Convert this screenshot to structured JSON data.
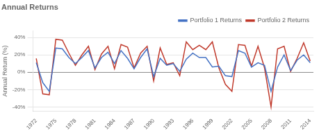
{
  "chart_data": {
    "type": "line",
    "title": "Annual Returns",
    "y_label": "Annual Return (%)",
    "x": [
      1972,
      1973,
      1974,
      1975,
      1976,
      1977,
      1978,
      1979,
      1980,
      1981,
      1982,
      1983,
      1984,
      1985,
      1986,
      1987,
      1988,
      1989,
      1990,
      1991,
      1992,
      1993,
      1994,
      1995,
      1996,
      1997,
      1998,
      1999,
      2000,
      2001,
      2002,
      2003,
      2004,
      2005,
      2006,
      2007,
      2008,
      2009,
      2010,
      2011,
      2012,
      2013,
      2014
    ],
    "series": [
      {
        "name": "Portfolio 1 Returns",
        "color": "#4472c4",
        "values": [
          11,
          -12,
          -22,
          28,
          27,
          17,
          10,
          17,
          25,
          5,
          17,
          23,
          10,
          25,
          16,
          4,
          17,
          27,
          -5,
          16,
          8,
          10,
          1,
          15,
          22,
          17,
          17,
          6,
          7,
          -4,
          -5,
          25,
          22,
          6,
          11,
          8,
          -22,
          6,
          20,
          2,
          14,
          20,
          11
        ]
      },
      {
        "name": "Portfolio 2 Returns",
        "color": "#c0392b",
        "values": [
          16,
          -25,
          -26,
          38,
          37,
          22,
          8,
          20,
          30,
          3,
          21,
          30,
          4,
          32,
          29,
          5,
          22,
          30,
          -10,
          28,
          9,
          11,
          -4,
          35,
          26,
          31,
          26,
          35,
          5,
          -14,
          -22,
          32,
          31,
          7,
          30,
          5,
          -40,
          27,
          30,
          1,
          16,
          34,
          13
        ]
      }
    ],
    "xlim": [
      1971.5,
      2014.5
    ],
    "xticks": [
      1972,
      1975,
      1978,
      1981,
      1984,
      1987,
      1990,
      1993,
      1996,
      1999,
      2002,
      2005,
      2008,
      2011,
      2014
    ],
    "ylim": [
      -45,
      48
    ],
    "yticks": [
      {
        "value": -40,
        "label": "-40%"
      },
      {
        "value": -20,
        "label": "-20%"
      },
      {
        "value": 0,
        "label": "0%"
      },
      {
        "value": 20,
        "label": "20%"
      },
      {
        "value": 40,
        "label": "40%"
      }
    ],
    "grid": true,
    "legend": "upper right"
  }
}
